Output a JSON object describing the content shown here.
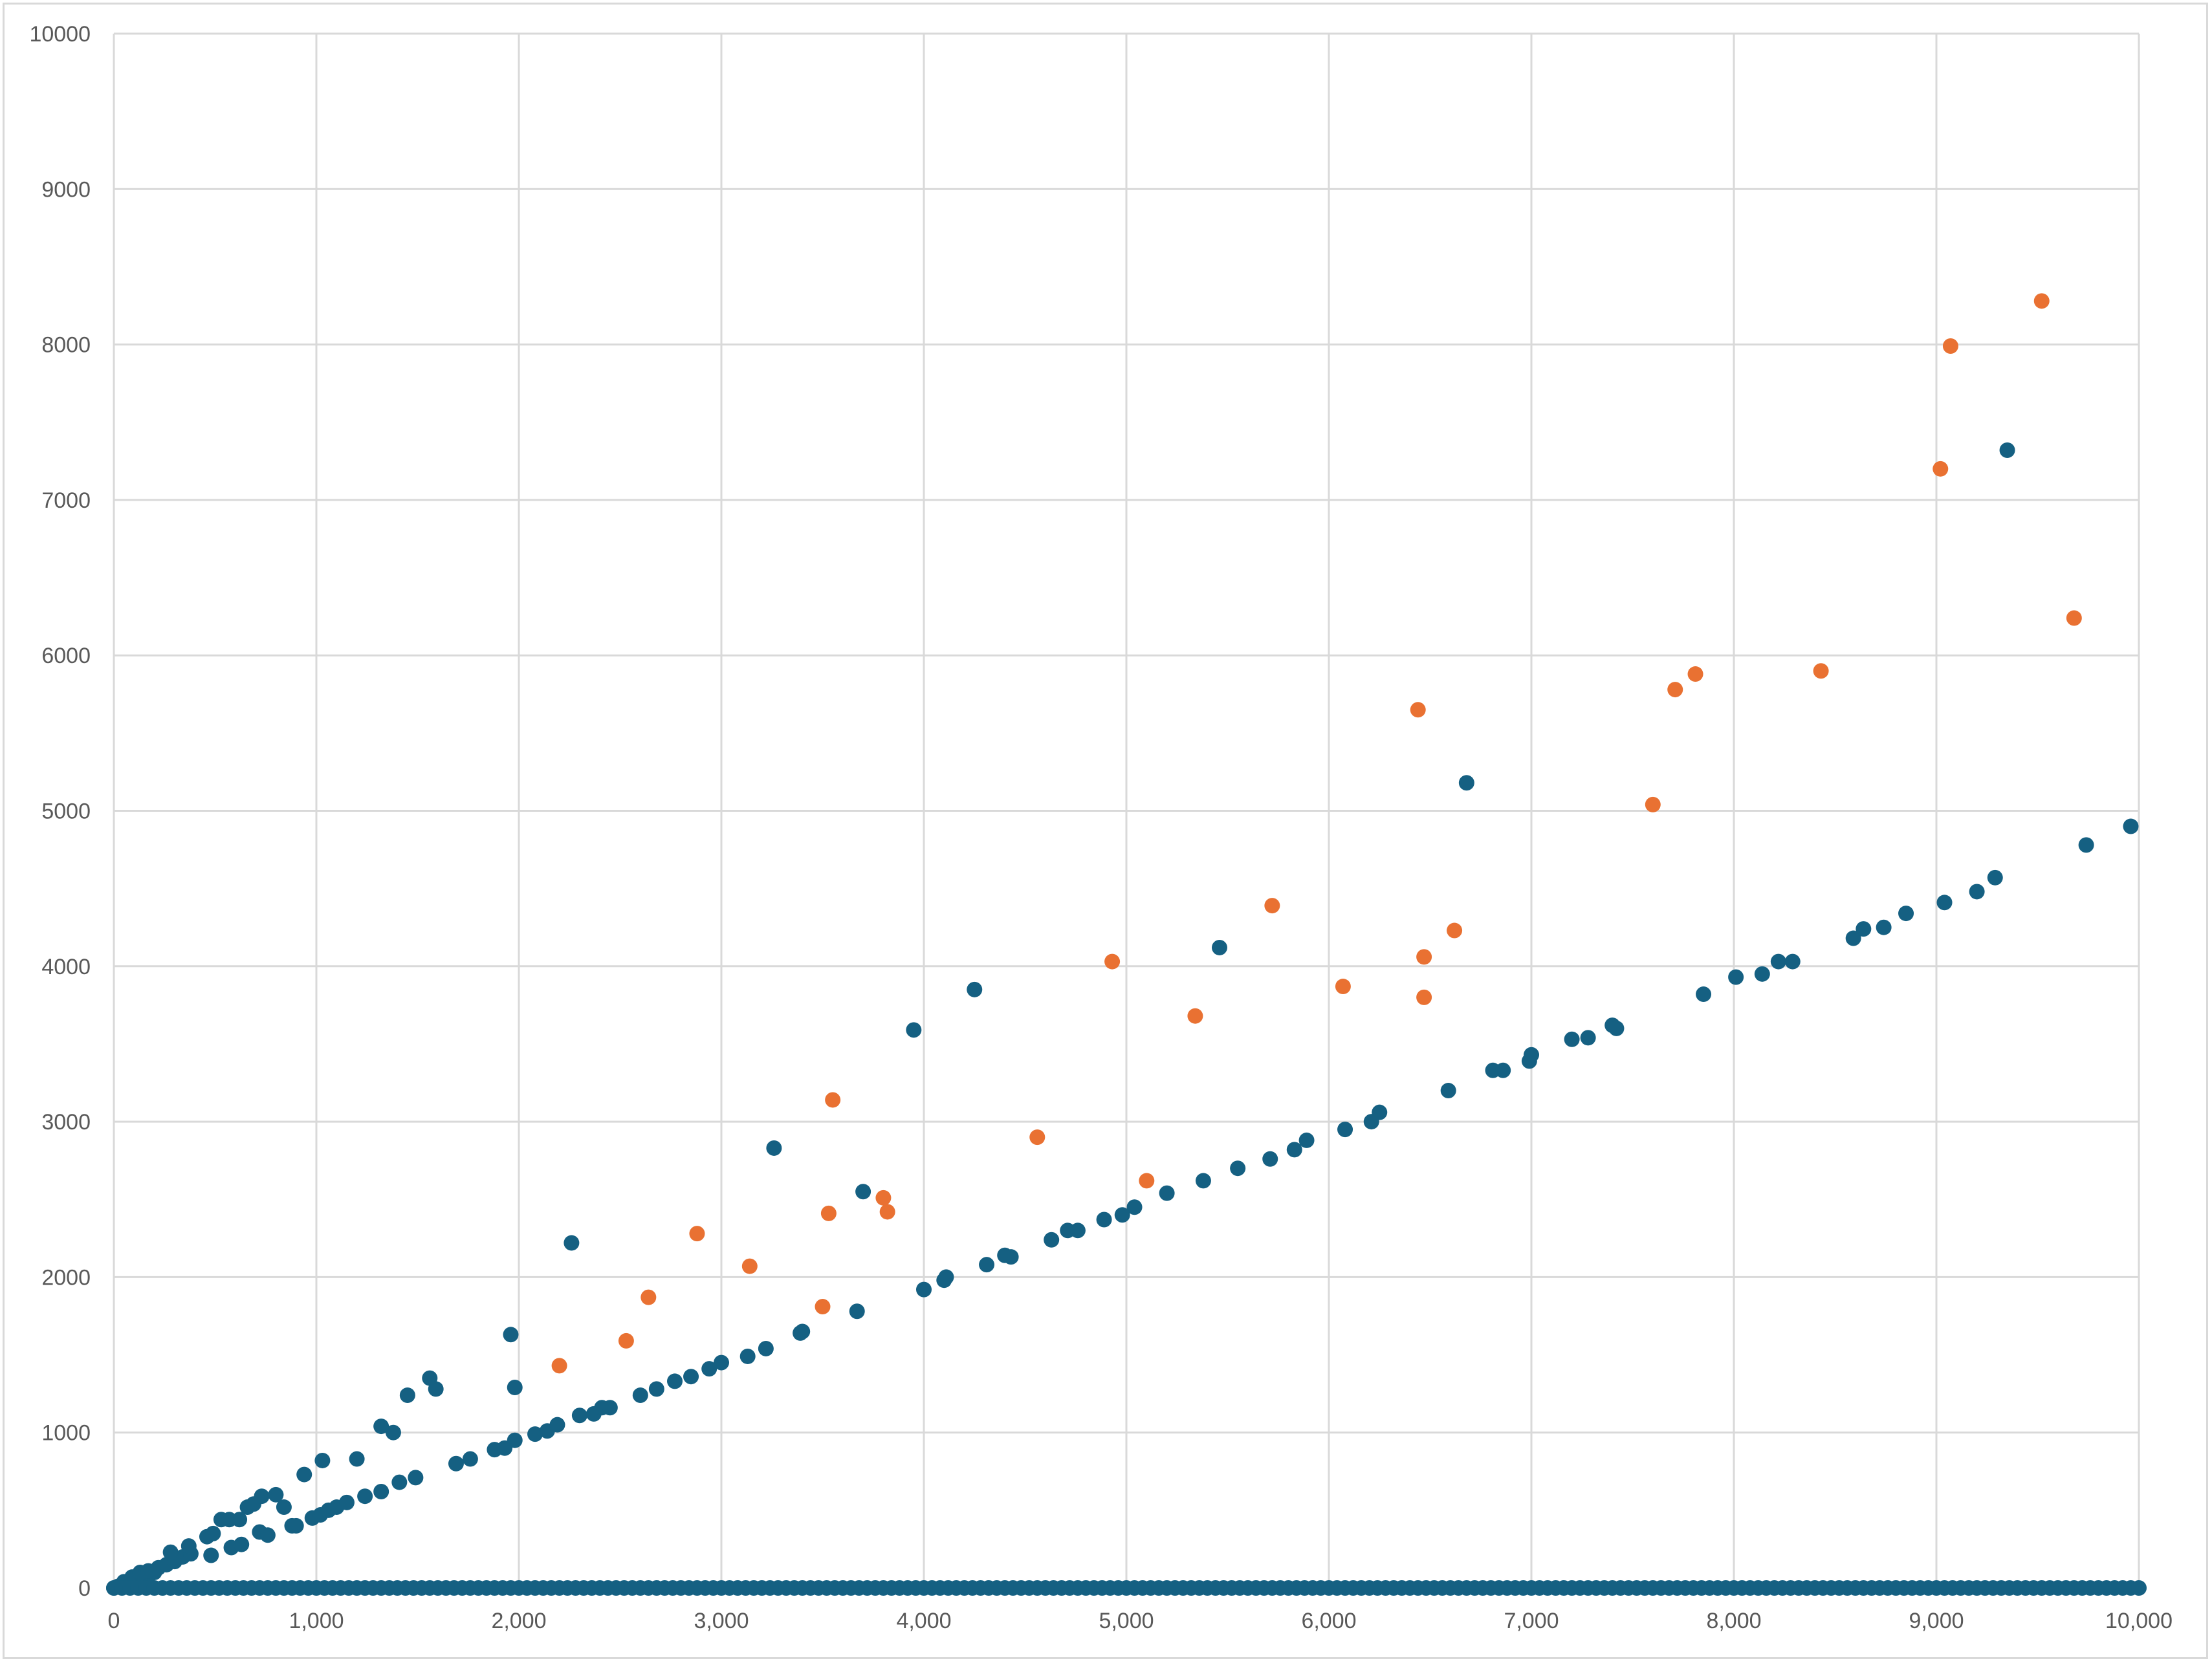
{
  "chart_data": {
    "type": "scatter",
    "title": "",
    "xlabel": "",
    "ylabel": "",
    "xlim": [
      0,
      10000
    ],
    "ylim": [
      0,
      10000
    ],
    "x_ticks": [
      0,
      1000,
      2000,
      3000,
      4000,
      5000,
      6000,
      7000,
      8000,
      9000,
      10000
    ],
    "x_tick_labels": [
      "0",
      "1,000",
      "2,000",
      "3,000",
      "4,000",
      "5,000",
      "6,000",
      "7,000",
      "8,000",
      "9,000",
      "10,000"
    ],
    "y_ticks": [
      0,
      1000,
      2000,
      3000,
      4000,
      5000,
      6000,
      7000,
      8000,
      9000,
      10000
    ],
    "y_tick_labels": [
      "0",
      "1000",
      "2000",
      "3000",
      "4000",
      "5000",
      "6000",
      "7000",
      "8000",
      "9000",
      "10000"
    ],
    "grid": true,
    "legend": "none",
    "series": [
      {
        "color": "#156082",
        "points": [
          [
            0,
            0
          ],
          [
            20,
            10
          ],
          [
            40,
            20
          ],
          [
            60,
            30
          ],
          [
            80,
            40
          ],
          [
            100,
            50
          ],
          [
            120,
            60
          ],
          [
            140,
            70
          ],
          [
            160,
            80
          ],
          [
            180,
            90
          ],
          [
            200,
            100
          ],
          [
            50,
            40
          ],
          [
            90,
            70
          ],
          [
            130,
            100
          ],
          [
            170,
            110
          ],
          [
            220,
            130
          ],
          [
            260,
            150
          ],
          [
            300,
            170
          ],
          [
            340,
            200
          ],
          [
            380,
            220
          ],
          [
            280,
            230
          ],
          [
            370,
            270
          ],
          [
            460,
            330
          ],
          [
            490,
            350
          ],
          [
            530,
            440
          ],
          [
            570,
            440
          ],
          [
            620,
            440
          ],
          [
            660,
            520
          ],
          [
            690,
            540
          ],
          [
            730,
            590
          ],
          [
            800,
            600
          ],
          [
            840,
            520
          ],
          [
            880,
            400
          ],
          [
            900,
            400
          ],
          [
            940,
            730
          ],
          [
            1030,
            820
          ],
          [
            1200,
            830
          ],
          [
            1320,
            1040
          ],
          [
            1380,
            1000
          ],
          [
            1450,
            1240
          ],
          [
            1560,
            1350
          ],
          [
            1590,
            1280
          ],
          [
            1960,
            1630
          ],
          [
            1980,
            1290
          ],
          [
            2260,
            2220
          ],
          [
            3260,
            2830
          ],
          [
            3950,
            3590
          ],
          [
            4250,
            3850
          ],
          [
            3700,
            2550
          ],
          [
            5460,
            4120
          ],
          [
            6680,
            5180
          ],
          [
            9350,
            7320
          ],
          [
            480,
            210
          ],
          [
            580,
            260
          ],
          [
            630,
            280
          ],
          [
            720,
            360
          ],
          [
            760,
            340
          ],
          [
            980,
            450
          ],
          [
            1020,
            470
          ],
          [
            1060,
            500
          ],
          [
            1100,
            520
          ],
          [
            1150,
            550
          ],
          [
            1240,
            590
          ],
          [
            1320,
            620
          ],
          [
            1410,
            680
          ],
          [
            1490,
            710
          ],
          [
            1690,
            800
          ],
          [
            1760,
            830
          ],
          [
            1880,
            890
          ],
          [
            1930,
            900
          ],
          [
            1980,
            950
          ],
          [
            2080,
            990
          ],
          [
            2140,
            1010
          ],
          [
            2190,
            1050
          ],
          [
            2300,
            1110
          ],
          [
            2370,
            1120
          ],
          [
            2410,
            1160
          ],
          [
            2450,
            1160
          ],
          [
            2600,
            1240
          ],
          [
            2680,
            1280
          ],
          [
            2770,
            1330
          ],
          [
            2850,
            1360
          ],
          [
            2940,
            1410
          ],
          [
            3000,
            1450
          ],
          [
            3130,
            1490
          ],
          [
            3220,
            1540
          ],
          [
            3390,
            1640
          ],
          [
            3400,
            1650
          ],
          [
            3670,
            1780
          ],
          [
            4000,
            1920
          ],
          [
            4100,
            1980
          ],
          [
            4110,
            2000
          ],
          [
            4310,
            2080
          ],
          [
            4400,
            2140
          ],
          [
            4430,
            2130
          ],
          [
            4630,
            2240
          ],
          [
            4710,
            2300
          ],
          [
            4760,
            2300
          ],
          [
            4890,
            2370
          ],
          [
            4980,
            2400
          ],
          [
            5040,
            2450
          ],
          [
            5200,
            2540
          ],
          [
            5380,
            2620
          ],
          [
            5550,
            2700
          ],
          [
            5710,
            2760
          ],
          [
            5830,
            2820
          ],
          [
            5890,
            2880
          ],
          [
            6080,
            2950
          ],
          [
            6210,
            3000
          ],
          [
            6250,
            3060
          ],
          [
            6590,
            3200
          ],
          [
            6810,
            3330
          ],
          [
            6860,
            3330
          ],
          [
            6990,
            3390
          ],
          [
            7000,
            3430
          ],
          [
            7200,
            3530
          ],
          [
            7280,
            3540
          ],
          [
            7400,
            3620
          ],
          [
            7420,
            3600
          ],
          [
            7850,
            3820
          ],
          [
            8010,
            3930
          ],
          [
            8140,
            3950
          ],
          [
            8220,
            4030
          ],
          [
            8290,
            4030
          ],
          [
            8590,
            4180
          ],
          [
            8640,
            4240
          ],
          [
            8740,
            4250
          ],
          [
            8850,
            4340
          ],
          [
            9040,
            4410
          ],
          [
            9200,
            4480
          ],
          [
            9290,
            4570
          ],
          [
            9740,
            4780
          ],
          [
            9960,
            4900
          ]
        ]
      },
      {
        "color": "#e97132",
        "points": [
          [
            2200,
            1430
          ],
          [
            2530,
            1590
          ],
          [
            2640,
            1870
          ],
          [
            2880,
            2280
          ],
          [
            3140,
            2070
          ],
          [
            3500,
            1810
          ],
          [
            3530,
            2410
          ],
          [
            3550,
            3140
          ],
          [
            3800,
            2510
          ],
          [
            3820,
            2420
          ],
          [
            4560,
            2900
          ],
          [
            4930,
            4030
          ],
          [
            5100,
            2620
          ],
          [
            5340,
            3680
          ],
          [
            5720,
            4390
          ],
          [
            6070,
            3870
          ],
          [
            6440,
            5650
          ],
          [
            6470,
            3800
          ],
          [
            6470,
            4060
          ],
          [
            6620,
            4230
          ],
          [
            7600,
            5040
          ],
          [
            7710,
            5780
          ],
          [
            7810,
            5880
          ],
          [
            8430,
            5900
          ],
          [
            9020,
            7200
          ],
          [
            9070,
            7990
          ],
          [
            9520,
            8280
          ],
          [
            9680,
            6240
          ]
        ]
      },
      {
        "color": "#156082",
        "baseline_points_at_y": 0,
        "x_from": 0,
        "x_to": 10000,
        "x_step": 40
      }
    ]
  }
}
